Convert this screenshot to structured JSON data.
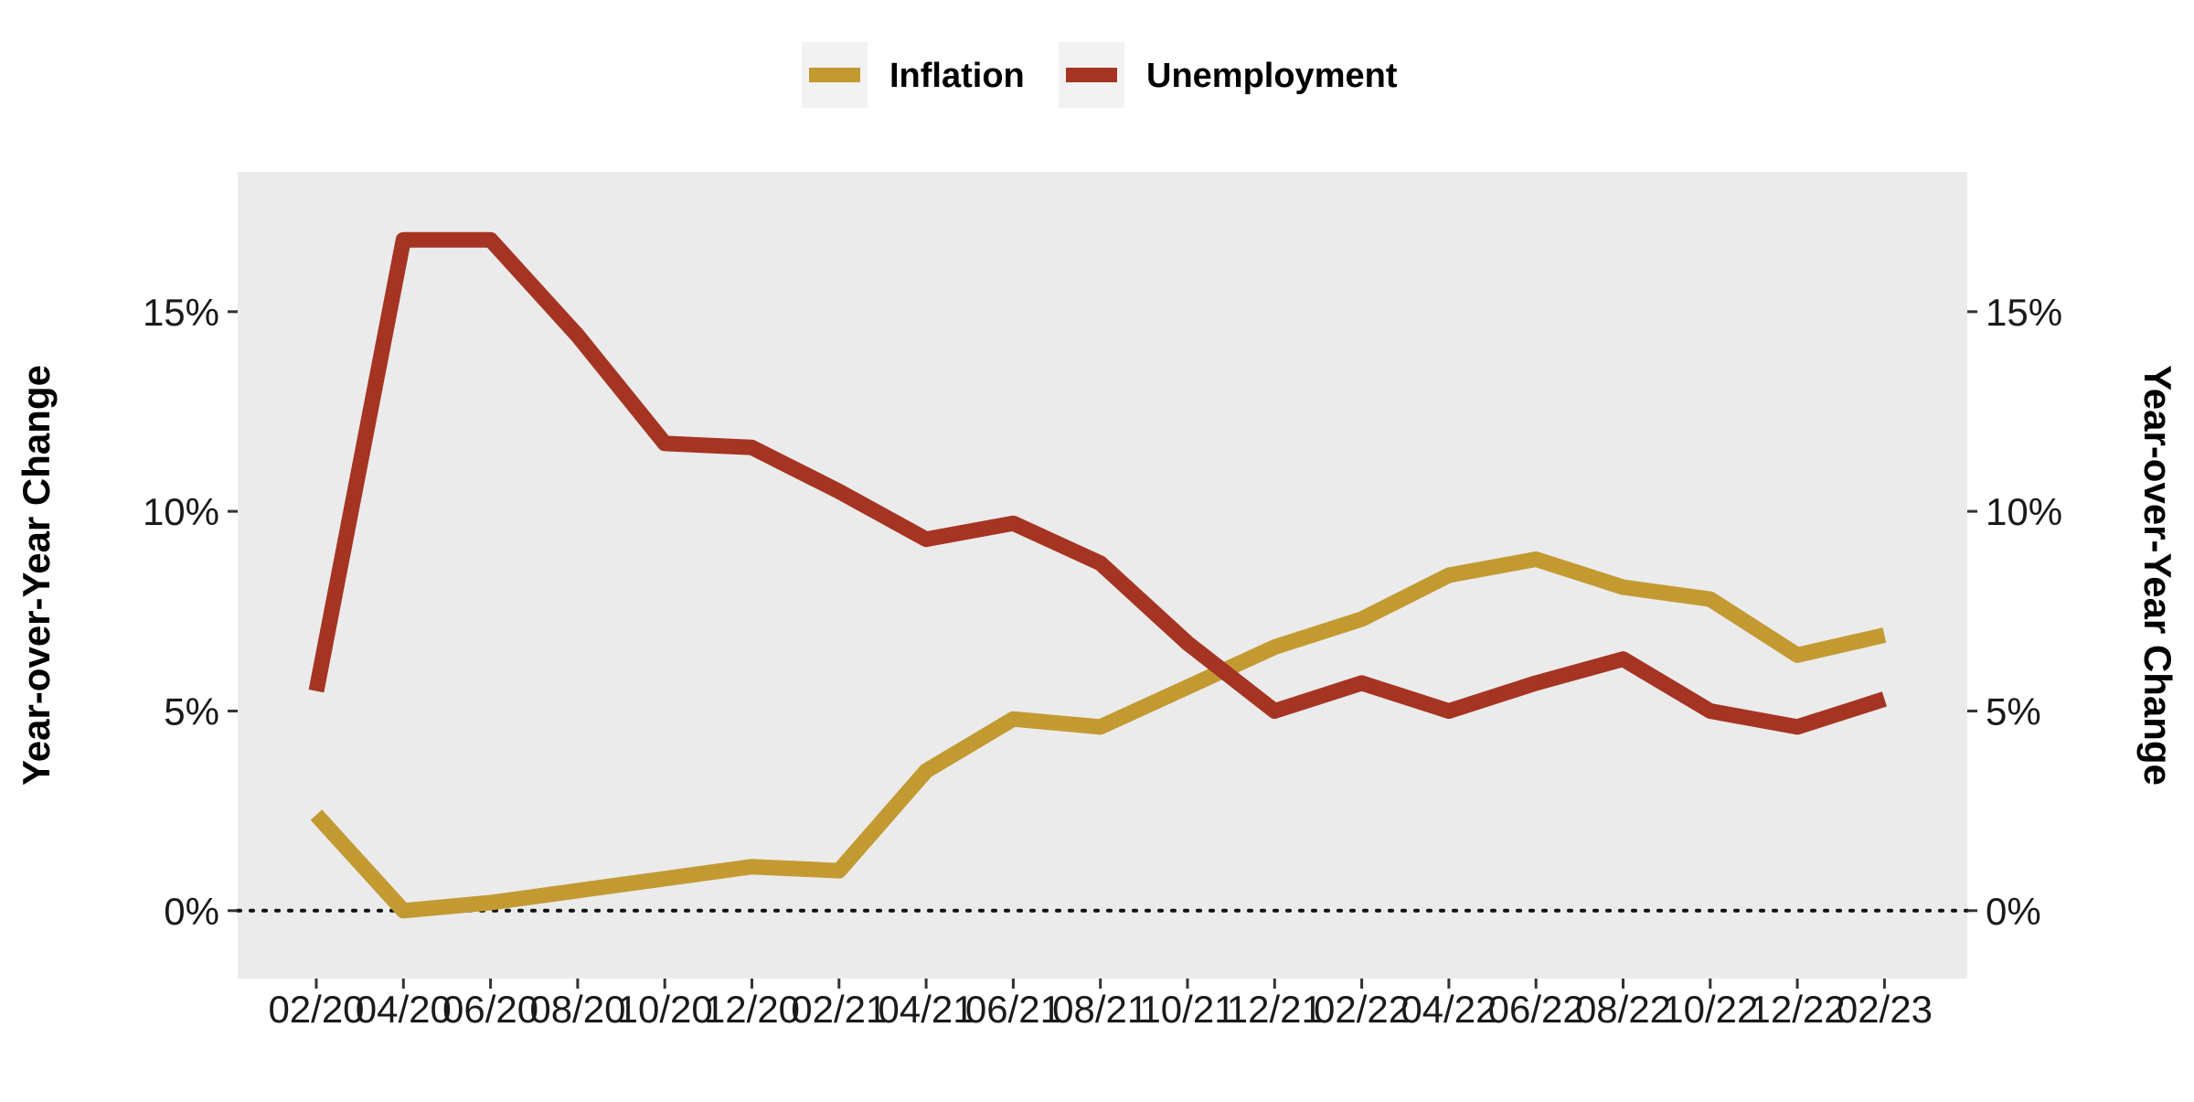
{
  "chart_data": {
    "type": "line",
    "categories": [
      "02/20",
      "04/20",
      "06/20",
      "08/20",
      "10/20",
      "12/20",
      "02/21",
      "04/21",
      "06/21",
      "08/21",
      "10/21",
      "12/21",
      "02/22",
      "04/22",
      "06/22",
      "08/22",
      "10/22",
      "12/22",
      "02/23"
    ],
    "series": [
      {
        "name": "Inflation",
        "color": "#C39A32",
        "values": [
          2.4,
          0.0,
          0.2,
          0.5,
          0.8,
          1.1,
          1.0,
          3.5,
          4.8,
          4.6,
          5.6,
          6.6,
          7.3,
          8.4,
          8.8,
          8.1,
          7.8,
          6.4,
          6.9
        ]
      },
      {
        "name": "Unemployment",
        "color": "#A63423",
        "values": [
          5.5,
          16.8,
          16.8,
          14.4,
          11.7,
          11.6,
          10.5,
          9.3,
          9.7,
          8.7,
          6.7,
          5.0,
          5.7,
          5.0,
          5.7,
          6.3,
          5.0,
          4.6,
          5.3
        ]
      }
    ],
    "ylim": [
      -1.7,
      18.5
    ],
    "yticks": [
      "0%",
      "5%",
      "10%",
      "15%"
    ],
    "ytick_values": [
      0,
      5,
      10,
      15
    ],
    "ylabel_left": "Year-over-Year Change",
    "ylabel_right": "Year-over-Year Change",
    "xlabel": "",
    "title": "",
    "legend_position": "top-center",
    "reference_line": {
      "y": 0,
      "style": "dotted"
    },
    "grid": false,
    "panel_color": "#EBEBEB"
  }
}
